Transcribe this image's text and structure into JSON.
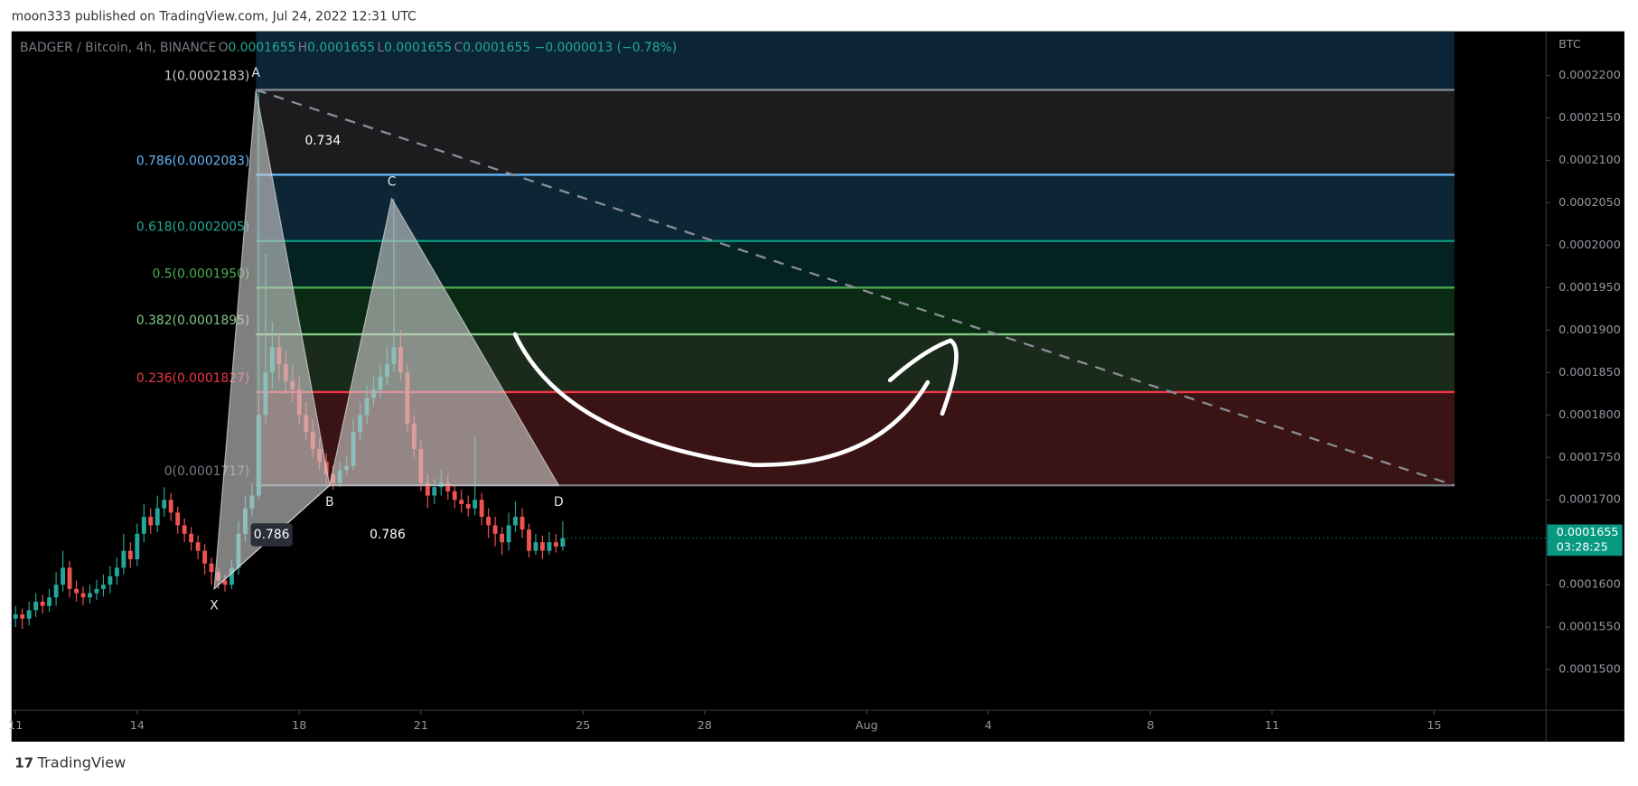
{
  "header": {
    "title": "moon333 published on TradingView.com, Jul 24, 2022 12:31 UTC"
  },
  "footer": {
    "brand": "TradingView"
  },
  "chart_data": {
    "type": "candlestick",
    "legend": {
      "symbol": "BADGER / Bitcoin, 4h, BINANCE",
      "items": [
        {
          "key": "O",
          "value": "0.0001655"
        },
        {
          "key": "H",
          "value": "0.0001655"
        },
        {
          "key": "L",
          "value": "0.0001655"
        },
        {
          "key": "C",
          "value": "0.0001655"
        }
      ],
      "change": "−0.0000013 (−0.78%)"
    },
    "y_unit": "BTC",
    "up_color": "#26a69a",
    "down_color": "#ef5350",
    "xlim": [
      10.9,
      48.76
    ],
    "xticks": [
      11,
      14,
      18,
      21,
      25,
      28,
      {
        "value": 32,
        "label": "Aug"
      },
      {
        "value": 35,
        "label": "4"
      },
      {
        "value": 39,
        "label": "8"
      },
      {
        "value": 42,
        "label": "11"
      },
      {
        "value": 46,
        "label": "15"
      }
    ],
    "ylim": [
      0.0001452,
      0.0002252
    ],
    "yticks": [
      {
        "value": 0.00015,
        "label": "0.0001500"
      },
      {
        "value": 0.000155,
        "label": "0.0001550"
      },
      {
        "value": 0.00016,
        "label": "0.0001600"
      },
      {
        "value": 0.000165,
        "label": "0.0001650"
      },
      {
        "value": 0.00017,
        "label": "0.0001700"
      },
      {
        "value": 0.000175,
        "label": "0.0001750"
      },
      {
        "value": 0.00018,
        "label": "0.0001800"
      },
      {
        "value": 0.000185,
        "label": "0.0001850"
      },
      {
        "value": 0.00019,
        "label": "0.0001900"
      },
      {
        "value": 0.000195,
        "label": "0.0001950"
      },
      {
        "value": 0.0002,
        "label": "0.0002000"
      },
      {
        "value": 0.000205,
        "label": "0.0002050"
      },
      {
        "value": 0.00021,
        "label": "0.0002100"
      },
      {
        "value": 0.000215,
        "label": "0.0002150"
      },
      {
        "value": 0.00022,
        "label": "0.0002200"
      }
    ],
    "x": [
      11,
      11.167,
      11.333,
      11.5,
      11.667,
      11.833,
      12,
      12.167,
      12.333,
      12.5,
      12.667,
      12.833,
      13,
      13.167,
      13.333,
      13.5,
      13.667,
      13.833,
      14,
      14.167,
      14.333,
      14.5,
      14.667,
      14.833,
      15,
      15.167,
      15.333,
      15.5,
      15.667,
      15.833,
      16,
      16.167,
      16.333,
      16.5,
      16.667,
      16.833,
      17,
      17.167,
      17.333,
      17.5,
      17.667,
      17.833,
      18,
      18.167,
      18.333,
      18.5,
      18.667,
      18.833,
      19,
      19.167,
      19.333,
      19.5,
      19.667,
      19.833,
      20,
      20.167,
      20.333,
      20.5,
      20.667,
      20.833,
      21,
      21.167,
      21.333,
      21.5,
      21.667,
      21.833,
      22,
      22.167,
      22.333,
      22.5,
      22.667,
      22.833,
      23,
      23.167,
      23.333,
      23.5,
      23.667,
      23.833,
      24,
      24.167,
      24.333,
      24.5
    ],
    "ohlc": [
      [
        0.000156,
        0.0001575,
        0.000155,
        0.0001565
      ],
      [
        0.0001565,
        0.0001572,
        0.0001548,
        0.000156
      ],
      [
        0.000156,
        0.000158,
        0.0001552,
        0.000157
      ],
      [
        0.000157,
        0.000159,
        0.0001562,
        0.000158
      ],
      [
        0.000158,
        0.0001588,
        0.0001566,
        0.0001575
      ],
      [
        0.0001575,
        0.0001595,
        0.0001568,
        0.0001585
      ],
      [
        0.0001585,
        0.0001615,
        0.0001575,
        0.00016
      ],
      [
        0.00016,
        0.000164,
        0.0001592,
        0.000162
      ],
      [
        0.000162,
        0.0001628,
        0.0001585,
        0.0001595
      ],
      [
        0.0001595,
        0.0001605,
        0.000158,
        0.000159
      ],
      [
        0.000159,
        0.0001598,
        0.0001576,
        0.0001585
      ],
      [
        0.0001585,
        0.00016,
        0.0001578,
        0.000159
      ],
      [
        0.000159,
        0.0001606,
        0.0001582,
        0.0001595
      ],
      [
        0.0001595,
        0.0001612,
        0.0001586,
        0.00016
      ],
      [
        0.00016,
        0.0001622,
        0.000159,
        0.000161
      ],
      [
        0.000161,
        0.0001632,
        0.00016,
        0.000162
      ],
      [
        0.000162,
        0.000166,
        0.0001612,
        0.000164
      ],
      [
        0.000164,
        0.000165,
        0.000162,
        0.000163
      ],
      [
        0.000163,
        0.0001672,
        0.0001622,
        0.000166
      ],
      [
        0.000166,
        0.0001695,
        0.000165,
        0.000168
      ],
      [
        0.000168,
        0.000169,
        0.000166,
        0.000167
      ],
      [
        0.000167,
        0.0001705,
        0.0001662,
        0.000169
      ],
      [
        0.000169,
        0.0001715,
        0.000168,
        0.00017
      ],
      [
        0.00017,
        0.0001708,
        0.0001675,
        0.0001685
      ],
      [
        0.0001685,
        0.0001692,
        0.000166,
        0.000167
      ],
      [
        0.000167,
        0.0001678,
        0.000165,
        0.000166
      ],
      [
        0.000166,
        0.0001668,
        0.000164,
        0.000165
      ],
      [
        0.000165,
        0.0001658,
        0.000163,
        0.000164
      ],
      [
        0.000164,
        0.0001648,
        0.0001612,
        0.0001625
      ],
      [
        0.0001625,
        0.0001632,
        0.00016,
        0.0001615
      ],
      [
        0.0001615,
        0.000162,
        0.0001595,
        0.0001605
      ],
      [
        0.0001605,
        0.0001612,
        0.0001592,
        0.00016
      ],
      [
        0.00016,
        0.000163,
        0.0001595,
        0.000162
      ],
      [
        0.000162,
        0.0001675,
        0.0001612,
        0.000166
      ],
      [
        0.000166,
        0.0001705,
        0.000165,
        0.000169
      ],
      [
        0.000169,
        0.000172,
        0.000168,
        0.0001705
      ],
      [
        0.0001705,
        0.0002183,
        0.00017,
        0.00018
      ],
      [
        0.00018,
        0.000199,
        0.000179,
        0.000185
      ],
      [
        0.000185,
        0.000191,
        0.000183,
        0.000188
      ],
      [
        0.000188,
        0.0001895,
        0.000184,
        0.000186
      ],
      [
        0.000186,
        0.0001875,
        0.0001825,
        0.000184
      ],
      [
        0.000184,
        0.000186,
        0.0001815,
        0.000183
      ],
      [
        0.000183,
        0.0001845,
        0.000179,
        0.00018
      ],
      [
        0.00018,
        0.0001815,
        0.000177,
        0.000178
      ],
      [
        0.000178,
        0.0001795,
        0.000175,
        0.000176
      ],
      [
        0.000176,
        0.0001772,
        0.0001735,
        0.0001745
      ],
      [
        0.0001745,
        0.0001755,
        0.0001717,
        0.000173
      ],
      [
        0.000173,
        0.000174,
        0.0001712,
        0.000172
      ],
      [
        0.000172,
        0.0001745,
        0.0001715,
        0.0001735
      ],
      [
        0.0001735,
        0.0001752,
        0.0001728,
        0.000174
      ],
      [
        0.000174,
        0.0001795,
        0.0001735,
        0.000178
      ],
      [
        0.000178,
        0.0001815,
        0.000177,
        0.00018
      ],
      [
        0.00018,
        0.0001835,
        0.000179,
        0.000182
      ],
      [
        0.000182,
        0.0001845,
        0.000181,
        0.000183
      ],
      [
        0.000183,
        0.000186,
        0.000182,
        0.0001845
      ],
      [
        0.0001845,
        0.000188,
        0.0001835,
        0.000186
      ],
      [
        0.000186,
        0.0002055,
        0.000185,
        0.000188
      ],
      [
        0.000188,
        0.00019,
        0.000184,
        0.000185
      ],
      [
        0.000185,
        0.000186,
        0.000178,
        0.000179
      ],
      [
        0.000179,
        0.00018,
        0.000175,
        0.000176
      ],
      [
        0.000176,
        0.000177,
        0.000171,
        0.000172
      ],
      [
        0.000172,
        0.000173,
        0.000169,
        0.0001705
      ],
      [
        0.0001705,
        0.0001725,
        0.0001695,
        0.0001715
      ],
      [
        0.0001715,
        0.0001735,
        0.0001705,
        0.000172
      ],
      [
        0.000172,
        0.000173,
        0.00017,
        0.000171
      ],
      [
        0.000171,
        0.0001718,
        0.000169,
        0.00017
      ],
      [
        0.00017,
        0.0001712,
        0.0001685,
        0.0001695
      ],
      [
        0.0001695,
        0.0001705,
        0.000168,
        0.000169
      ],
      [
        0.000169,
        0.0001775,
        0.0001682,
        0.00017
      ],
      [
        0.00017,
        0.0001708,
        0.000167,
        0.000168
      ],
      [
        0.000168,
        0.000169,
        0.0001655,
        0.000167
      ],
      [
        0.000167,
        0.000168,
        0.0001645,
        0.000166
      ],
      [
        0.000166,
        0.0001668,
        0.0001635,
        0.000165
      ],
      [
        0.000165,
        0.0001685,
        0.000164,
        0.000167
      ],
      [
        0.000167,
        0.0001698,
        0.0001662,
        0.000168
      ],
      [
        0.000168,
        0.000169,
        0.0001655,
        0.0001665
      ],
      [
        0.0001665,
        0.0001672,
        0.0001632,
        0.000164
      ],
      [
        0.000164,
        0.000166,
        0.0001635,
        0.000165
      ],
      [
        0.000165,
        0.0001658,
        0.000163,
        0.000164
      ],
      [
        0.000164,
        0.0001662,
        0.0001635,
        0.000165
      ],
      [
        0.000165,
        0.000166,
        0.0001638,
        0.0001645
      ],
      [
        0.0001645,
        0.0001675,
        0.000164,
        0.0001655
      ]
    ],
    "last_price": {
      "value": 0.0001655,
      "label": "0.0001655",
      "countdown": "03:28:25",
      "color": "#089981"
    },
    "fib": {
      "x": [
        16.93,
        46.5
      ],
      "levels": [
        {
          "label": "1(0.0002183)",
          "value": 0.0002183,
          "color": "#8a8d96",
          "text_color": "#c8c8c8",
          "fill": "#0b2436"
        },
        {
          "label": "0.786(0.0002083)",
          "value": 0.0002083,
          "color": "#64b5f6",
          "text_color": "#64b5f6",
          "fill": "#1c1c1e"
        },
        {
          "label": "0.618(0.0002005)",
          "value": 0.0002005,
          "color": "#089981",
          "text_color": "#22ab94",
          "fill": "#0c2636"
        },
        {
          "label": "0.5(0.0001950)",
          "value": 0.000195,
          "color": "#4caf50",
          "text_color": "#4caf50",
          "fill": "#032221"
        },
        {
          "label": "0.382(0.0001895)",
          "value": 0.0001895,
          "color": "#81c784",
          "text_color": "#81c784",
          "fill": "#0b2a14"
        },
        {
          "label": "0.236(0.0001827)",
          "value": 0.0001827,
          "color": "#f23645",
          "text_color": "#f23645",
          "fill": "#1a2b1b"
        },
        {
          "label": "0(0.0001717)",
          "value": 0.0001717,
          "color": "#787b86",
          "text_color": "#787b86",
          "fill": "#3a1414"
        }
      ]
    },
    "pattern": {
      "fill": "rgba(205,205,205,0.62)",
      "points": [
        {
          "label": "X",
          "x": 15.9,
          "y": 0.0001595
        },
        {
          "label": "A",
          "x": 16.93,
          "y": 0.0002183
        },
        {
          "label": "B",
          "x": 18.75,
          "y": 0.0001717
        },
        {
          "label": "C",
          "x": 20.28,
          "y": 0.0002055
        },
        {
          "label": "D",
          "x": 24.4,
          "y": 0.0001717
        }
      ],
      "ratios": [
        "0.734",
        "0.786",
        "0.786"
      ]
    },
    "trendline": {
      "x": [
        16.93,
        46.5
      ],
      "y": [
        0.0002183,
        0.0001717
      ],
      "color": "#8a8d96"
    }
  }
}
